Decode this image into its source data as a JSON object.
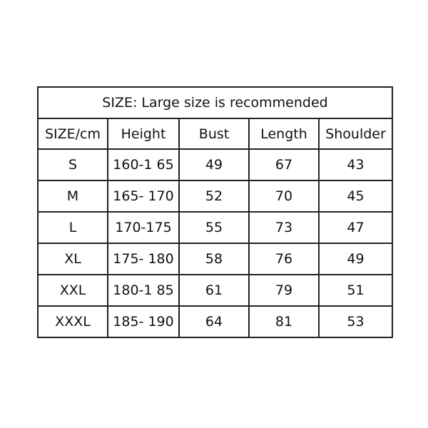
{
  "title": "SIZE:  Large size is recommended",
  "headers": [
    "SIZE/cm",
    "Height",
    "Bust",
    "Length",
    "Shoulder"
  ],
  "rows": [
    [
      "S",
      "160-1 65",
      "49",
      "67",
      "43"
    ],
    [
      "M",
      "165- 170",
      "52",
      "70",
      "45"
    ],
    [
      "L",
      "170-175",
      "55",
      "73",
      "47"
    ],
    [
      "XL",
      "175- 180",
      "58",
      "76",
      "49"
    ],
    [
      "XXL",
      "180-1 85",
      "61",
      "79",
      "51"
    ],
    [
      "XXXL",
      "185- 190",
      "64",
      "81",
      "53"
    ]
  ]
}
